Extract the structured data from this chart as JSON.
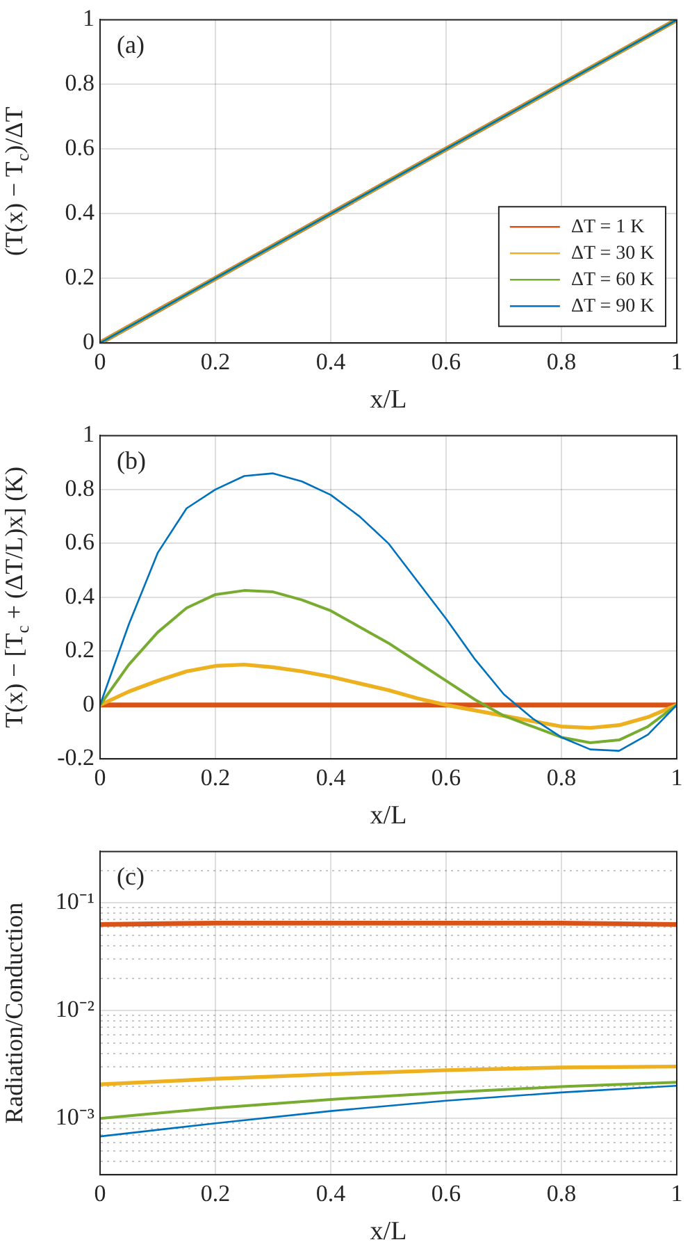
{
  "chart_data": [
    {
      "type": "line",
      "xlabel": "x/L",
      "ylabel": "(T(x) − T$_{c}$)/ΔT",
      "annotations": [
        "(a)"
      ],
      "x": [
        0,
        0.5,
        1
      ],
      "xlim": [
        0,
        1
      ],
      "xticks": [
        0,
        0.2,
        0.4,
        0.6,
        0.8,
        1
      ],
      "ylim": [
        0,
        1
      ],
      "yticks": [
        0,
        0.2,
        0.4,
        0.6,
        0.8,
        1
      ],
      "grid": true,
      "legend": "bottom right",
      "series": [
        {
          "name": "ΔT = 1 K",
          "color": "#d95319",
          "values": [
            0,
            0.5,
            1
          ]
        },
        {
          "name": "ΔT = 30 K",
          "color": "#edb120",
          "values": [
            0,
            0.5,
            1
          ]
        },
        {
          "name": "ΔT = 60 K",
          "color": "#77ac30",
          "values": [
            0,
            0.5,
            1
          ]
        },
        {
          "name": "ΔT = 90 K",
          "color": "#0072bd",
          "values": [
            0,
            0.5,
            1
          ]
        }
      ]
    },
    {
      "type": "line",
      "xlabel": "x/L",
      "ylabel": "T(x) − [T$_{c}$ + (ΔT/L)x] (K)",
      "annotations": [
        "(b)"
      ],
      "x": [
        0,
        0.05,
        0.1,
        0.15,
        0.2,
        0.25,
        0.3,
        0.35,
        0.4,
        0.45,
        0.5,
        0.55,
        0.6,
        0.65,
        0.7,
        0.75,
        0.8,
        0.85,
        0.9,
        0.95,
        1
      ],
      "xlim": [
        0,
        1
      ],
      "xticks": [
        0,
        0.2,
        0.4,
        0.6,
        0.8,
        1
      ],
      "ylim": [
        -0.2,
        1
      ],
      "yticks": [
        -0.2,
        0,
        0.2,
        0.4,
        0.6,
        0.8,
        1
      ],
      "grid": true,
      "series": [
        {
          "color": "#d95319",
          "values": [
            0,
            0,
            0,
            0,
            0,
            0,
            0,
            0,
            0,
            0,
            0,
            0,
            0,
            0,
            0,
            0,
            0,
            0,
            0,
            0,
            0
          ]
        },
        {
          "color": "#edb120",
          "values": [
            0,
            0.05,
            0.09,
            0.125,
            0.145,
            0.15,
            0.14,
            0.125,
            0.105,
            0.08,
            0.055,
            0.025,
            0,
            -0.02,
            -0.04,
            -0.06,
            -0.08,
            -0.085,
            -0.075,
            -0.045,
            0
          ]
        },
        {
          "color": "#77ac30",
          "values": [
            0,
            0.15,
            0.27,
            0.36,
            0.41,
            0.425,
            0.42,
            0.39,
            0.35,
            0.29,
            0.23,
            0.16,
            0.09,
            0.02,
            -0.04,
            -0.08,
            -0.12,
            -0.14,
            -0.13,
            -0.08,
            0
          ]
        },
        {
          "color": "#0072bd",
          "values": [
            0,
            0.3,
            0.565,
            0.73,
            0.8,
            0.85,
            0.86,
            0.83,
            0.78,
            0.7,
            0.6,
            0.46,
            0.32,
            0.17,
            0.04,
            -0.05,
            -0.12,
            -0.165,
            -0.17,
            -0.11,
            0
          ]
        }
      ]
    },
    {
      "type": "line",
      "xlabel": "x/L",
      "ylabel": "Radiation/Conduction",
      "annotations": [
        "(c)"
      ],
      "log": "y",
      "x": [
        0,
        0.2,
        0.4,
        0.6,
        0.8,
        1
      ],
      "xlim": [
        0,
        1
      ],
      "xticks": [
        0,
        0.2,
        0.4,
        0.6,
        0.8,
        1
      ],
      "ylim": [
        0.0003,
        0.3
      ],
      "yticks": [
        {
          "value": 0.0004,
          "label": null
        },
        {
          "value": 0.0005,
          "label": null
        },
        {
          "value": 0.0006,
          "label": null
        },
        {
          "value": 0.0007,
          "label": null
        },
        {
          "value": 0.0008,
          "label": null
        },
        {
          "value": 0.0009,
          "label": null
        },
        {
          "value": 0.001,
          "label": "10⁻³"
        },
        {
          "value": 0.002,
          "label": null
        },
        {
          "value": 0.003,
          "label": null
        },
        {
          "value": 0.004,
          "label": null
        },
        {
          "value": 0.005,
          "label": null
        },
        {
          "value": 0.006,
          "label": null
        },
        {
          "value": 0.007,
          "label": null
        },
        {
          "value": 0.008,
          "label": null
        },
        {
          "value": 0.009,
          "label": null
        },
        {
          "value": 0.01,
          "label": "10⁻²"
        },
        {
          "value": 0.02,
          "label": null
        },
        {
          "value": 0.03,
          "label": null
        },
        {
          "value": 0.04,
          "label": null
        },
        {
          "value": 0.05,
          "label": null
        },
        {
          "value": 0.06,
          "label": null
        },
        {
          "value": 0.07,
          "label": null
        },
        {
          "value": 0.08,
          "label": null
        },
        {
          "value": 0.09,
          "label": null
        },
        {
          "value": 0.1,
          "label": "10⁻¹"
        },
        {
          "value": 0.2,
          "label": null
        }
      ],
      "grid": true,
      "series": [
        {
          "color": "#d95319",
          "values": [
            0.063,
            0.065,
            0.065,
            0.065,
            0.065,
            0.063
          ]
        },
        {
          "color": "#edb120",
          "values": [
            0.00207,
            0.00233,
            0.00257,
            0.0028,
            0.00297,
            0.00303
          ]
        },
        {
          "color": "#77ac30",
          "values": [
            0.001,
            0.00125,
            0.0015,
            0.00174,
            0.00197,
            0.00216
          ]
        },
        {
          "color": "#0072bd",
          "values": [
            0.00068,
            0.0009,
            0.00117,
            0.00146,
            0.00174,
            0.00201
          ]
        }
      ]
    }
  ]
}
